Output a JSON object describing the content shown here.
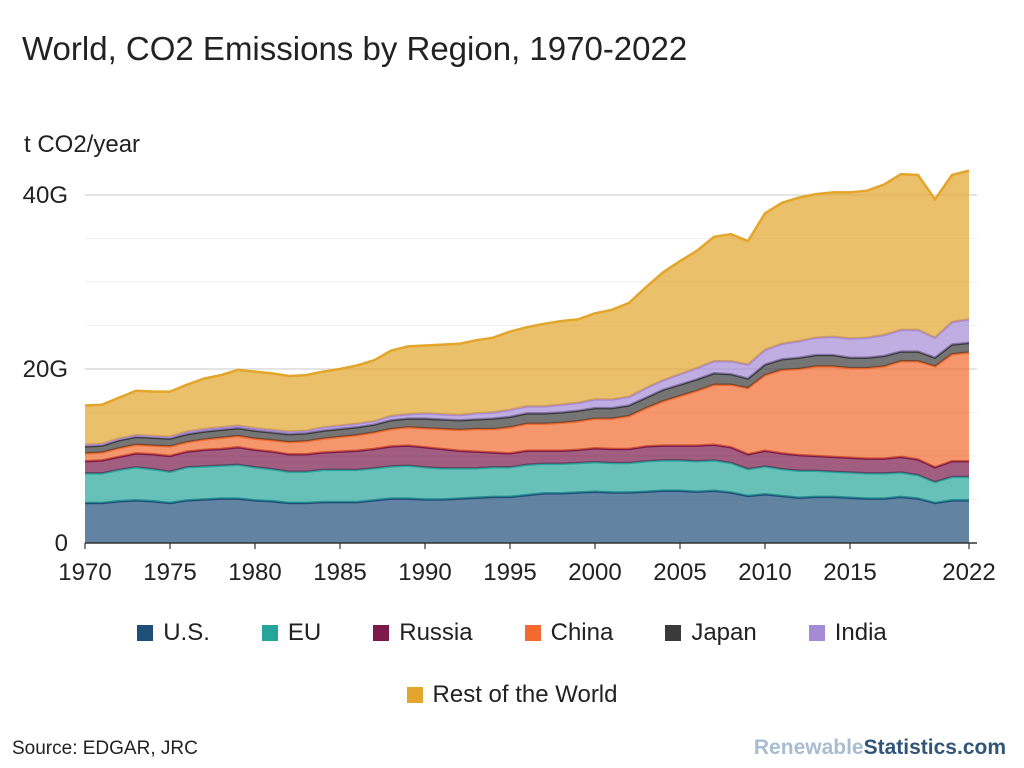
{
  "title": "World, CO2 Emissions by Region, 1970-2022",
  "unit_label": "t CO2/year",
  "source": "Source: EDGAR, JRC",
  "brand": {
    "part1": "Renewable",
    "part2": "Statistics.com"
  },
  "legend_rows": [
    [
      {
        "name": "U.S.",
        "color": "#1f4e79"
      },
      {
        "name": "EU",
        "color": "#26a69a"
      },
      {
        "name": "Russia",
        "color": "#7b1a4b"
      },
      {
        "name": "China",
        "color": "#f26a2e"
      },
      {
        "name": "Japan",
        "color": "#3a3a3a"
      },
      {
        "name": "India",
        "color": "#a58ad6"
      }
    ],
    [
      {
        "name": "Rest of the World",
        "color": "#e3a52b"
      }
    ]
  ],
  "chart_data": {
    "type": "area",
    "stacked": true,
    "x": [
      1970,
      1971,
      1972,
      1973,
      1974,
      1975,
      1976,
      1977,
      1978,
      1979,
      1980,
      1981,
      1982,
      1983,
      1984,
      1985,
      1986,
      1987,
      1988,
      1989,
      1990,
      1991,
      1992,
      1993,
      1994,
      1995,
      1996,
      1997,
      1998,
      1999,
      2000,
      2001,
      2002,
      2003,
      2004,
      2005,
      2006,
      2007,
      2008,
      2009,
      2010,
      2011,
      2012,
      2013,
      2014,
      2015,
      2016,
      2017,
      2018,
      2019,
      2020,
      2021,
      2022
    ],
    "x_tick_labels": [
      "1970",
      "1975",
      "1980",
      "1985",
      "1990",
      "1995",
      "2000",
      "2005",
      "2010",
      "2015",
      "2022"
    ],
    "x_tick_values": [
      1970,
      1975,
      1980,
      1985,
      1990,
      1995,
      2000,
      2005,
      2010,
      2015,
      2022
    ],
    "y_ticks": [
      0,
      20,
      40
    ],
    "y_tick_labels": [
      "0",
      "20G",
      "40G"
    ],
    "ylim": [
      0,
      40
    ],
    "ylabel": "t CO2/year",
    "series": [
      {
        "name": "U.S.",
        "color": "#1f4e79",
        "values": [
          4.6,
          4.6,
          4.8,
          4.9,
          4.8,
          4.6,
          4.9,
          5.0,
          5.1,
          5.1,
          4.9,
          4.8,
          4.6,
          4.6,
          4.7,
          4.7,
          4.7,
          4.9,
          5.1,
          5.1,
          5.0,
          5.0,
          5.1,
          5.2,
          5.3,
          5.3,
          5.5,
          5.7,
          5.7,
          5.8,
          5.9,
          5.8,
          5.8,
          5.9,
          6.0,
          6.0,
          5.9,
          6.0,
          5.8,
          5.4,
          5.6,
          5.4,
          5.2,
          5.3,
          5.3,
          5.2,
          5.1,
          5.1,
          5.3,
          5.1,
          4.6,
          4.9,
          4.9
        ]
      },
      {
        "name": "EU",
        "color": "#26a69a",
        "values": [
          3.4,
          3.4,
          3.6,
          3.8,
          3.7,
          3.6,
          3.8,
          3.8,
          3.8,
          3.9,
          3.8,
          3.7,
          3.6,
          3.6,
          3.7,
          3.7,
          3.7,
          3.7,
          3.7,
          3.8,
          3.7,
          3.6,
          3.5,
          3.4,
          3.4,
          3.4,
          3.5,
          3.4,
          3.4,
          3.4,
          3.4,
          3.4,
          3.4,
          3.5,
          3.5,
          3.5,
          3.5,
          3.5,
          3.4,
          3.1,
          3.2,
          3.1,
          3.1,
          3.0,
          2.9,
          2.9,
          2.9,
          2.9,
          2.8,
          2.7,
          2.4,
          2.7,
          2.7
        ]
      },
      {
        "name": "Russia",
        "color": "#7b1a4b",
        "values": [
          1.4,
          1.5,
          1.5,
          1.6,
          1.7,
          1.8,
          1.8,
          1.9,
          1.9,
          2.0,
          2.0,
          2.0,
          2.0,
          2.0,
          2.0,
          2.1,
          2.2,
          2.2,
          2.3,
          2.3,
          2.3,
          2.2,
          2.0,
          1.9,
          1.7,
          1.6,
          1.6,
          1.5,
          1.5,
          1.5,
          1.6,
          1.6,
          1.6,
          1.7,
          1.7,
          1.7,
          1.8,
          1.8,
          1.8,
          1.7,
          1.8,
          1.8,
          1.8,
          1.7,
          1.7,
          1.7,
          1.7,
          1.7,
          1.8,
          1.8,
          1.7,
          1.8,
          1.8
        ]
      },
      {
        "name": "China",
        "color": "#f26a2e",
        "values": [
          0.9,
          0.9,
          1.0,
          1.0,
          1.0,
          1.1,
          1.1,
          1.2,
          1.3,
          1.3,
          1.3,
          1.3,
          1.4,
          1.5,
          1.6,
          1.7,
          1.8,
          1.9,
          2.0,
          2.1,
          2.2,
          2.3,
          2.4,
          2.6,
          2.7,
          3.0,
          3.1,
          3.1,
          3.2,
          3.3,
          3.4,
          3.5,
          3.8,
          4.4,
          5.1,
          5.7,
          6.3,
          6.9,
          7.2,
          7.6,
          8.7,
          9.6,
          9.9,
          10.3,
          10.4,
          10.3,
          10.4,
          10.6,
          11.0,
          11.3,
          11.6,
          12.3,
          12.5
        ]
      },
      {
        "name": "Japan",
        "color": "#3a3a3a",
        "values": [
          0.8,
          0.8,
          0.9,
          0.9,
          0.9,
          0.9,
          0.9,
          0.9,
          0.9,
          0.9,
          0.9,
          0.9,
          0.9,
          0.9,
          0.9,
          0.9,
          0.9,
          0.9,
          1.0,
          1.0,
          1.1,
          1.1,
          1.1,
          1.1,
          1.2,
          1.2,
          1.2,
          1.2,
          1.2,
          1.2,
          1.2,
          1.2,
          1.2,
          1.2,
          1.3,
          1.3,
          1.3,
          1.3,
          1.2,
          1.1,
          1.2,
          1.2,
          1.3,
          1.3,
          1.3,
          1.2,
          1.2,
          1.2,
          1.1,
          1.1,
          1.0,
          1.1,
          1.1
        ]
      },
      {
        "name": "India",
        "color": "#a58ad6",
        "values": [
          0.2,
          0.2,
          0.2,
          0.2,
          0.2,
          0.2,
          0.3,
          0.3,
          0.3,
          0.3,
          0.3,
          0.3,
          0.3,
          0.3,
          0.4,
          0.4,
          0.4,
          0.4,
          0.5,
          0.5,
          0.6,
          0.6,
          0.6,
          0.7,
          0.7,
          0.8,
          0.8,
          0.8,
          0.9,
          0.9,
          1.0,
          1.0,
          1.0,
          1.1,
          1.1,
          1.2,
          1.3,
          1.4,
          1.5,
          1.6,
          1.7,
          1.8,
          1.9,
          2.0,
          2.1,
          2.2,
          2.3,
          2.4,
          2.5,
          2.5,
          2.3,
          2.6,
          2.7
        ]
      },
      {
        "name": "Rest of the World",
        "color": "#e3a52b",
        "values": [
          4.5,
          4.5,
          4.7,
          5.1,
          5.1,
          5.2,
          5.4,
          5.8,
          6.0,
          6.4,
          6.5,
          6.5,
          6.4,
          6.4,
          6.4,
          6.5,
          6.7,
          7.0,
          7.5,
          7.8,
          7.8,
          8.0,
          8.2,
          8.4,
          8.6,
          9.0,
          9.1,
          9.5,
          9.6,
          9.6,
          9.9,
          10.3,
          10.8,
          11.6,
          12.4,
          13.0,
          13.5,
          14.3,
          14.6,
          14.2,
          15.7,
          16.2,
          16.5,
          16.5,
          16.6,
          16.8,
          16.9,
          17.3,
          17.9,
          17.8,
          15.9,
          16.9,
          17.1
        ]
      }
    ]
  }
}
